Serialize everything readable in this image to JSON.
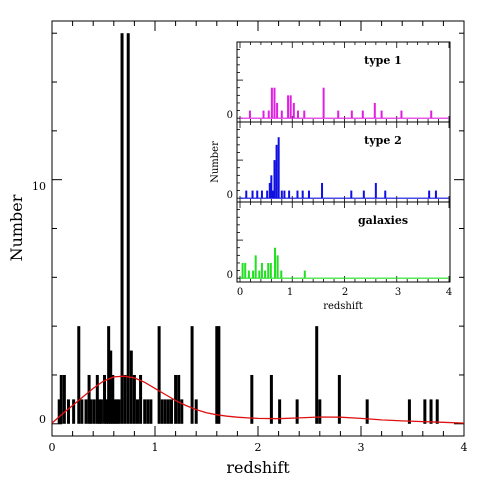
{
  "chart_data": [
    {
      "type": "bar",
      "panel": "main",
      "title": "",
      "xlabel": "redshift",
      "ylabel": "Number",
      "xlim": [
        0,
        4
      ],
      "ylim": [
        -0.5,
        16.5
      ],
      "xticks": [
        "0",
        "1",
        "2",
        "3",
        "4"
      ],
      "yticks": [
        "0",
        "10"
      ],
      "bar_color": "#000000",
      "bars": [
        {
          "x": 0.07,
          "y": 1
        },
        {
          "x": 0.09,
          "y": 2
        },
        {
          "x": 0.12,
          "y": 2
        },
        {
          "x": 0.16,
          "y": 1
        },
        {
          "x": 0.21,
          "y": 1
        },
        {
          "x": 0.26,
          "y": 4
        },
        {
          "x": 0.29,
          "y": 1
        },
        {
          "x": 0.33,
          "y": 1
        },
        {
          "x": 0.36,
          "y": 2
        },
        {
          "x": 0.38,
          "y": 1
        },
        {
          "x": 0.41,
          "y": 1
        },
        {
          "x": 0.44,
          "y": 2
        },
        {
          "x": 0.46,
          "y": 1
        },
        {
          "x": 0.48,
          "y": 1
        },
        {
          "x": 0.51,
          "y": 2
        },
        {
          "x": 0.53,
          "y": 1
        },
        {
          "x": 0.55,
          "y": 4
        },
        {
          "x": 0.57,
          "y": 3
        },
        {
          "x": 0.59,
          "y": 2
        },
        {
          "x": 0.61,
          "y": 1
        },
        {
          "x": 0.63,
          "y": 1
        },
        {
          "x": 0.65,
          "y": 1
        },
        {
          "x": 0.68,
          "y": 16
        },
        {
          "x": 0.71,
          "y": 2
        },
        {
          "x": 0.74,
          "y": 16
        },
        {
          "x": 0.77,
          "y": 3
        },
        {
          "x": 0.8,
          "y": 2
        },
        {
          "x": 0.83,
          "y": 1
        },
        {
          "x": 0.86,
          "y": 2
        },
        {
          "x": 0.9,
          "y": 1
        },
        {
          "x": 0.93,
          "y": 1
        },
        {
          "x": 0.96,
          "y": 1
        },
        {
          "x": 1.04,
          "y": 4
        },
        {
          "x": 1.07,
          "y": 1
        },
        {
          "x": 1.1,
          "y": 1
        },
        {
          "x": 1.13,
          "y": 1
        },
        {
          "x": 1.16,
          "y": 1
        },
        {
          "x": 1.2,
          "y": 2
        },
        {
          "x": 1.23,
          "y": 2
        },
        {
          "x": 1.26,
          "y": 1
        },
        {
          "x": 1.36,
          "y": 4
        },
        {
          "x": 1.4,
          "y": 1
        },
        {
          "x": 1.6,
          "y": 4
        },
        {
          "x": 1.62,
          "y": 4
        },
        {
          "x": 1.94,
          "y": 2
        },
        {
          "x": 2.13,
          "y": 2
        },
        {
          "x": 2.21,
          "y": 1
        },
        {
          "x": 2.38,
          "y": 1
        },
        {
          "x": 2.57,
          "y": 4
        },
        {
          "x": 2.6,
          "y": 1
        },
        {
          "x": 2.79,
          "y": 2
        },
        {
          "x": 3.06,
          "y": 1
        },
        {
          "x": 3.47,
          "y": 1
        },
        {
          "x": 3.62,
          "y": 1
        },
        {
          "x": 3.68,
          "y": 1
        },
        {
          "x": 3.74,
          "y": 1
        }
      ],
      "curve_color": "#e01010",
      "curve": [
        {
          "x": 0.0,
          "y": 0.03
        },
        {
          "x": 0.1,
          "y": 0.4
        },
        {
          "x": 0.2,
          "y": 0.75
        },
        {
          "x": 0.3,
          "y": 1.1
        },
        {
          "x": 0.4,
          "y": 1.45
        },
        {
          "x": 0.5,
          "y": 1.75
        },
        {
          "x": 0.6,
          "y": 1.92
        },
        {
          "x": 0.7,
          "y": 1.95
        },
        {
          "x": 0.8,
          "y": 1.88
        },
        {
          "x": 0.9,
          "y": 1.7
        },
        {
          "x": 1.0,
          "y": 1.45
        },
        {
          "x": 1.1,
          "y": 1.2
        },
        {
          "x": 1.2,
          "y": 0.95
        },
        {
          "x": 1.3,
          "y": 0.75
        },
        {
          "x": 1.4,
          "y": 0.58
        },
        {
          "x": 1.5,
          "y": 0.45
        },
        {
          "x": 1.6,
          "y": 0.37
        },
        {
          "x": 1.7,
          "y": 0.31
        },
        {
          "x": 1.8,
          "y": 0.27
        },
        {
          "x": 1.9,
          "y": 0.24
        },
        {
          "x": 2.0,
          "y": 0.22
        },
        {
          "x": 2.2,
          "y": 0.21
        },
        {
          "x": 2.4,
          "y": 0.24
        },
        {
          "x": 2.6,
          "y": 0.28
        },
        {
          "x": 2.8,
          "y": 0.27
        },
        {
          "x": 3.0,
          "y": 0.22
        },
        {
          "x": 3.2,
          "y": 0.16
        },
        {
          "x": 3.4,
          "y": 0.12
        },
        {
          "x": 3.6,
          "y": 0.09
        },
        {
          "x": 3.8,
          "y": 0.06
        },
        {
          "x": 4.0,
          "y": 0.03
        }
      ]
    },
    {
      "type": "bar",
      "panel": "inset-type1",
      "title": "type 1",
      "xlabel": "",
      "ylabel": "",
      "xlim": [
        0,
        4
      ],
      "ylim": [
        -0.5,
        10
      ],
      "yticks": [
        "0"
      ],
      "bar_color": "#e020e0",
      "bars": [
        {
          "x": 0.19,
          "y": 1
        },
        {
          "x": 0.45,
          "y": 1
        },
        {
          "x": 0.55,
          "y": 1
        },
        {
          "x": 0.61,
          "y": 4
        },
        {
          "x": 0.66,
          "y": 4
        },
        {
          "x": 0.71,
          "y": 2
        },
        {
          "x": 0.8,
          "y": 1
        },
        {
          "x": 0.92,
          "y": 3
        },
        {
          "x": 0.97,
          "y": 3
        },
        {
          "x": 1.03,
          "y": 2
        },
        {
          "x": 1.11,
          "y": 1
        },
        {
          "x": 1.23,
          "y": 1
        },
        {
          "x": 1.6,
          "y": 4
        },
        {
          "x": 1.88,
          "y": 1
        },
        {
          "x": 2.14,
          "y": 1
        },
        {
          "x": 2.35,
          "y": 1
        },
        {
          "x": 2.58,
          "y": 2
        },
        {
          "x": 2.71,
          "y": 1
        },
        {
          "x": 3.09,
          "y": 1
        },
        {
          "x": 3.66,
          "y": 1
        }
      ]
    },
    {
      "type": "bar",
      "panel": "inset-type2",
      "title": "type 2",
      "xlabel": "",
      "ylabel": "Number",
      "xlim": [
        0,
        4
      ],
      "ylim": [
        -0.5,
        10
      ],
      "yticks": [
        "0"
      ],
      "bar_color": "#1010e0",
      "bars": [
        {
          "x": 0.12,
          "y": 1
        },
        {
          "x": 0.24,
          "y": 1
        },
        {
          "x": 0.33,
          "y": 1
        },
        {
          "x": 0.42,
          "y": 1
        },
        {
          "x": 0.52,
          "y": 1
        },
        {
          "x": 0.57,
          "y": 2
        },
        {
          "x": 0.6,
          "y": 3
        },
        {
          "x": 0.63,
          "y": 1
        },
        {
          "x": 0.66,
          "y": 5
        },
        {
          "x": 0.7,
          "y": 7
        },
        {
          "x": 0.74,
          "y": 8
        },
        {
          "x": 0.8,
          "y": 1
        },
        {
          "x": 0.85,
          "y": 1
        },
        {
          "x": 0.94,
          "y": 1
        },
        {
          "x": 1.1,
          "y": 1
        },
        {
          "x": 1.2,
          "y": 1
        },
        {
          "x": 1.32,
          "y": 1
        },
        {
          "x": 1.57,
          "y": 2
        },
        {
          "x": 2.13,
          "y": 1
        },
        {
          "x": 2.37,
          "y": 1
        },
        {
          "x": 2.6,
          "y": 2
        },
        {
          "x": 2.78,
          "y": 1
        },
        {
          "x": 3.62,
          "y": 1
        },
        {
          "x": 3.75,
          "y": 1
        }
      ]
    },
    {
      "type": "bar",
      "panel": "inset-galaxies",
      "title": "galaxies",
      "xlabel": "redshift",
      "ylabel": "",
      "xlim": [
        0,
        4
      ],
      "ylim": [
        -0.5,
        10
      ],
      "xticks": [
        "0",
        "1",
        "2",
        "3",
        "4"
      ],
      "yticks": [
        "0"
      ],
      "bar_color": "#20e020",
      "bars": [
        {
          "x": 0.05,
          "y": 2
        },
        {
          "x": 0.1,
          "y": 2
        },
        {
          "x": 0.17,
          "y": 1
        },
        {
          "x": 0.25,
          "y": 1
        },
        {
          "x": 0.3,
          "y": 3
        },
        {
          "x": 0.37,
          "y": 1
        },
        {
          "x": 0.42,
          "y": 2
        },
        {
          "x": 0.48,
          "y": 1
        },
        {
          "x": 0.54,
          "y": 2
        },
        {
          "x": 0.59,
          "y": 2
        },
        {
          "x": 0.67,
          "y": 4
        },
        {
          "x": 0.72,
          "y": 3
        },
        {
          "x": 0.79,
          "y": 1
        },
        {
          "x": 1.24,
          "y": 1
        }
      ]
    }
  ]
}
